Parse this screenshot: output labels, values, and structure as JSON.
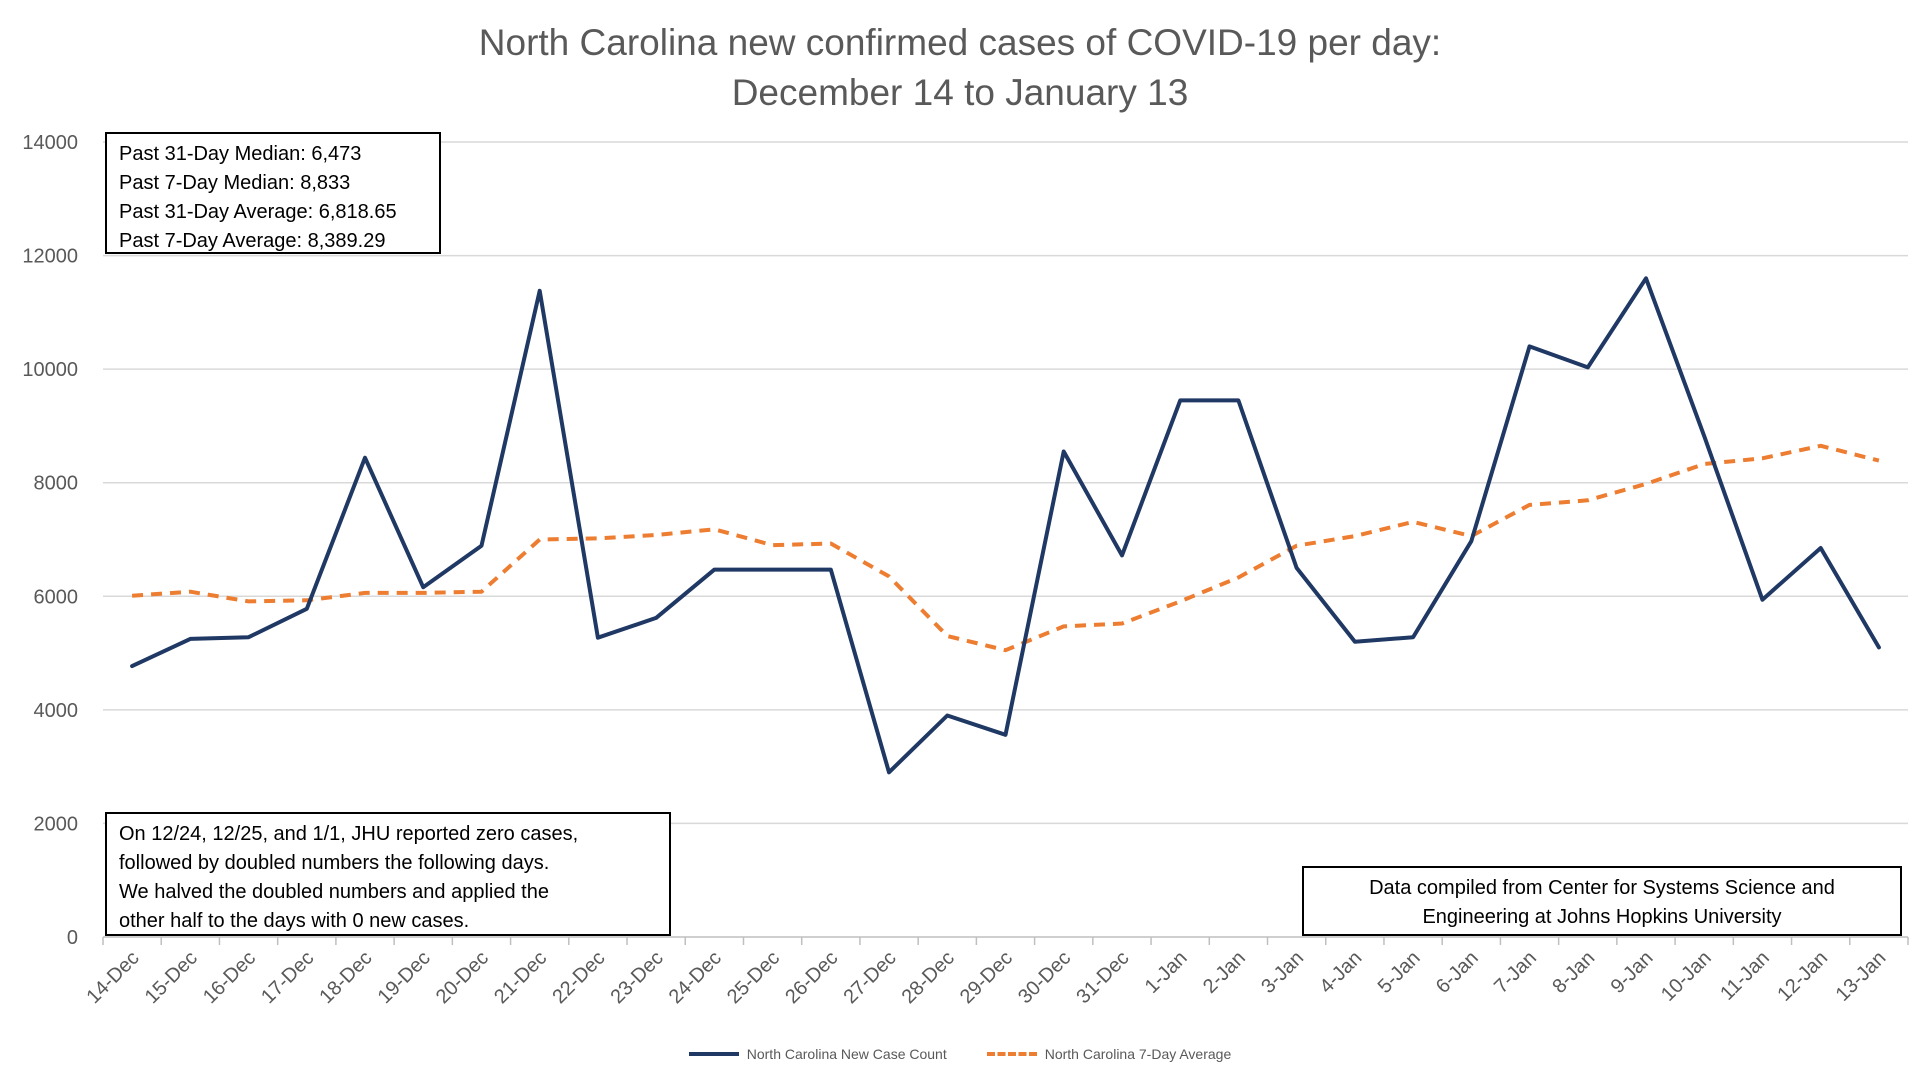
{
  "chart_data": {
    "type": "line",
    "title": "North Carolina new confirmed cases of COVID-19 per day:",
    "subtitle": "December 14 to January 13",
    "categories": [
      "14-Dec",
      "15-Dec",
      "16-Dec",
      "17-Dec",
      "18-Dec",
      "19-Dec",
      "20-Dec",
      "21-Dec",
      "22-Dec",
      "23-Dec",
      "24-Dec",
      "25-Dec",
      "26-Dec",
      "27-Dec",
      "28-Dec",
      "29-Dec",
      "30-Dec",
      "31-Dec",
      "1-Jan",
      "2-Jan",
      "3-Jan",
      "4-Jan",
      "5-Jan",
      "6-Jan",
      "7-Jan",
      "8-Jan",
      "9-Jan",
      "10-Jan",
      "11-Jan",
      "12-Jan",
      "13-Jan"
    ],
    "series": [
      {
        "name": "North Carolina New Case Count",
        "color": "#1f3864",
        "style": "solid",
        "values": [
          4770,
          5250,
          5280,
          5780,
          8440,
          6160,
          6890,
          11380,
          5270,
          5620,
          6470,
          6470,
          6470,
          2900,
          3900,
          3560,
          8550,
          6720,
          9450,
          9450,
          6500,
          5200,
          5280,
          6970,
          10400,
          10030,
          11600,
          8820,
          5940,
          6850,
          5100
        ]
      },
      {
        "name": "North Carolina 7-Day Average",
        "color": "#ed7d31",
        "style": "dashed",
        "values": [
          6010,
          6080,
          5910,
          5930,
          6060,
          6060,
          6080,
          7000,
          7020,
          7080,
          7180,
          6900,
          6930,
          6350,
          5300,
          5050,
          5470,
          5520,
          5910,
          6330,
          6890,
          7060,
          7310,
          7060,
          7610,
          7690,
          7980,
          8330,
          8430,
          8650,
          8390
        ]
      }
    ],
    "ylim": [
      0,
      14000
    ],
    "yticks": [
      "0",
      "2000",
      "4000",
      "6000",
      "8000",
      "10000",
      "12000",
      "14000"
    ],
    "grid": true,
    "legend": "bottom",
    "annotations": {
      "stats": [
        "Past 31-Day Median: 6,473",
        "Past 7-Day Median: 8,833",
        "Past 31-Day Average: 6,818.65",
        "Past 7-Day Average: 8,389.29"
      ],
      "note": [
        "On 12/24, 12/25, and 1/1, JHU reported zero cases,",
        "followed by doubled numbers the following days.",
        "We halved the doubled numbers and applied the",
        "other half to the days with 0 new cases."
      ],
      "source": [
        "Data compiled from Center for Systems Science and",
        "Engineering at Johns Hopkins University"
      ]
    }
  }
}
